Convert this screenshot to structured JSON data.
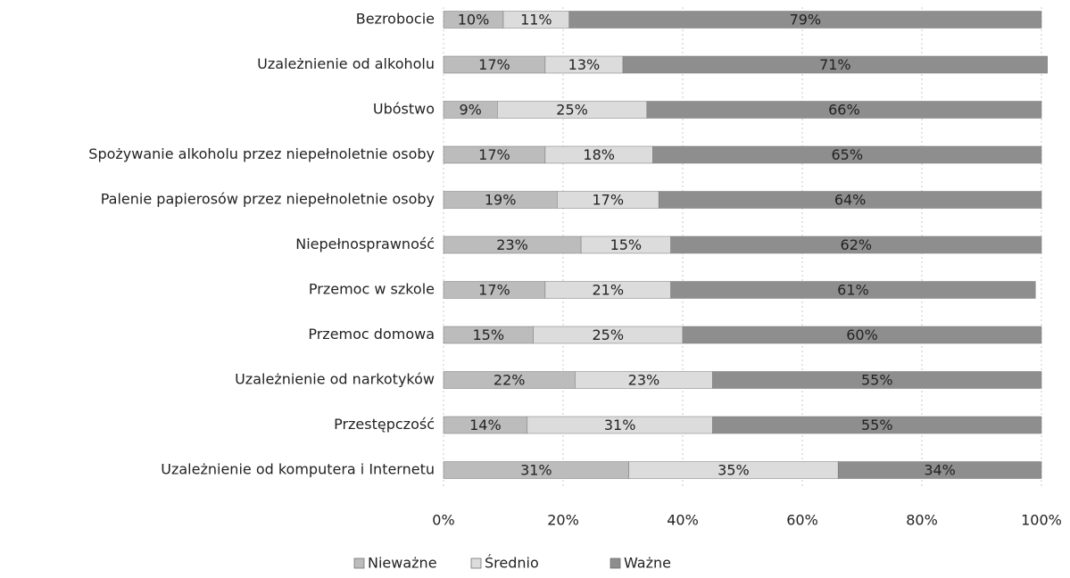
{
  "chart_data": {
    "type": "stacked_barh",
    "categories": [
      "Bezrobocie",
      "Uzależnienie od alkoholu",
      "Ubóstwo",
      "Spożywanie alkoholu przez niepełnoletnie osoby",
      "Palenie papierosów przez niepełnoletnie osoby",
      "Niepełnosprawność",
      "Przemoc w szkole",
      "Przemoc domowa",
      "Uzależnienie od narkotyków",
      "Przestępczość",
      "Uzależnienie od komputera i Internetu"
    ],
    "series": [
      {
        "name": "Nieważne",
        "color": "#bcbcbc",
        "values": [
          10,
          17,
          9,
          17,
          19,
          23,
          17,
          15,
          22,
          14,
          31
        ],
        "value_labels": [
          "10%",
          "17%",
          "9%",
          "17%",
          "19%",
          "23%",
          "17%",
          "15%",
          "22%",
          "14%",
          "31%"
        ]
      },
      {
        "name": "Średnio",
        "color": "#dcdcdc",
        "values": [
          11,
          13,
          25,
          18,
          17,
          15,
          21,
          25,
          23,
          31,
          35
        ],
        "value_labels": [
          "11%",
          "13%",
          "25%",
          "18%",
          "17%",
          "15%",
          "21%",
          "25%",
          "23%",
          "31%",
          "35%"
        ]
      },
      {
        "name": "Ważne",
        "color": "#8e8e8e",
        "values": [
          79,
          71,
          66,
          65,
          64,
          62,
          61,
          60,
          55,
          55,
          34
        ],
        "value_labels": [
          "79%",
          "71%",
          "66%",
          "65%",
          "64%",
          "62%",
          "61%",
          "60%",
          "55%",
          "55%",
          "34%"
        ]
      }
    ],
    "xlim": [
      0,
      100
    ],
    "xticks": [
      {
        "value": 0,
        "label": "0%"
      },
      {
        "value": 20,
        "label": "20%"
      },
      {
        "value": 40,
        "label": "40%"
      },
      {
        "value": 60,
        "label": "60%"
      },
      {
        "value": 80,
        "label": "80%"
      },
      {
        "value": 100,
        "label": "100%"
      }
    ],
    "grid": true,
    "legend": "bottom"
  }
}
